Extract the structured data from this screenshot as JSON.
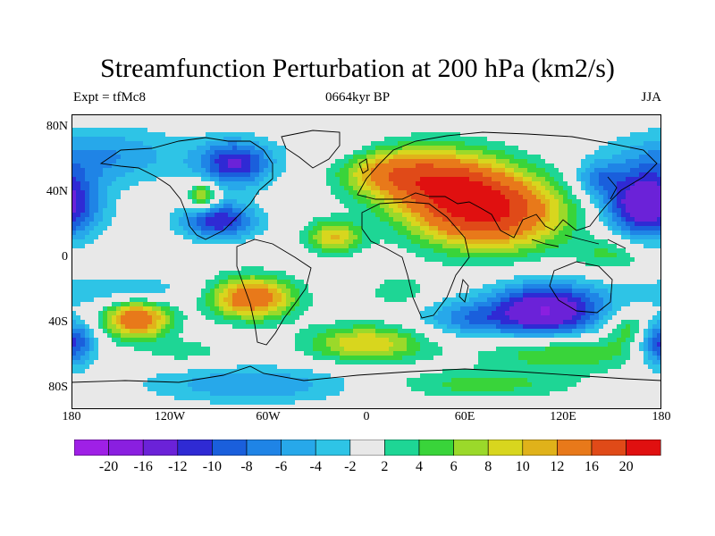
{
  "title": "Streamfunction Perturbation at 200 hPa (km2/s)",
  "left_label": "Expt = tfMc8",
  "center_label": "0664kyr BP",
  "right_label": "JJA",
  "lat_ticks": [
    "80N",
    "40N",
    "0",
    "40S",
    "80S"
  ],
  "lon_ticks": [
    "180",
    "120W",
    "60W",
    "0",
    "60E",
    "120E",
    "180"
  ],
  "colorbar": {
    "labels": [
      "-20",
      "-16",
      "-12",
      "-10",
      "-8",
      "-6",
      "-4",
      "-2",
      "2",
      "4",
      "6",
      "8",
      "10",
      "12",
      "16",
      "20"
    ],
    "colors": [
      "#9f20e6",
      "#8a1fe0",
      "#6b22d8",
      "#2f2ad4",
      "#1a5fdc",
      "#1f84e6",
      "#27a8ea",
      "#2ec4e6",
      "#e8e8e8",
      "#1ed695",
      "#39d43a",
      "#9bd92a",
      "#d8d61e",
      "#e0b21a",
      "#e8791a",
      "#e04a18",
      "#e01010"
    ]
  },
  "chart_data": {
    "type": "heatmap",
    "variable": "Streamfunction Perturbation at 200 hPa",
    "units": "km2/s",
    "season": "JJA",
    "x_range": [
      -180,
      180
    ],
    "y_range": [
      -90,
      90
    ],
    "levels": [
      -20,
      -16,
      -12,
      -10,
      -8,
      -6,
      -4,
      -2,
      2,
      4,
      6,
      8,
      10,
      12,
      16,
      20
    ],
    "features": [
      {
        "lon": 75,
        "lat": 30,
        "value": 20,
        "sx": 32,
        "sy": 16
      },
      {
        "lon": 45,
        "lat": 50,
        "value": 14,
        "sx": 28,
        "sy": 14
      },
      {
        "lon": 10,
        "lat": 55,
        "value": 8,
        "sx": 20,
        "sy": 10
      },
      {
        "lon": -100,
        "lat": 40,
        "value": 10,
        "sx": 6,
        "sy": 6
      },
      {
        "lon": -80,
        "lat": 60,
        "value": -12,
        "sx": 16,
        "sy": 10
      },
      {
        "lon": -90,
        "lat": 25,
        "value": -12,
        "sx": 16,
        "sy": 8
      },
      {
        "lon": -160,
        "lat": 65,
        "value": -6,
        "sx": 35,
        "sy": 12
      },
      {
        "lon": -20,
        "lat": 70,
        "value": -2,
        "sx": 20,
        "sy": 8
      },
      {
        "lon": 170,
        "lat": 35,
        "value": -16,
        "sx": 18,
        "sy": 15
      },
      {
        "lon": 140,
        "lat": 50,
        "value": -6,
        "sx": 10,
        "sy": 8
      },
      {
        "lon": 110,
        "lat": -30,
        "value": -16,
        "sx": 25,
        "sy": 12
      },
      {
        "lon": 60,
        "lat": -35,
        "value": -6,
        "sx": 20,
        "sy": 8
      },
      {
        "lon": -180,
        "lat": -50,
        "value": -12,
        "sx": 10,
        "sy": 10
      },
      {
        "lon": -150,
        "lat": -18,
        "value": -4,
        "sx": 35,
        "sy": 7
      },
      {
        "lon": -70,
        "lat": -75,
        "value": -6,
        "sx": 45,
        "sy": 8
      },
      {
        "lon": -140,
        "lat": -35,
        "value": 16,
        "sx": 14,
        "sy": 8
      },
      {
        "lon": -70,
        "lat": -22,
        "value": 16,
        "sx": 18,
        "sy": 9
      },
      {
        "lon": -20,
        "lat": 15,
        "value": 10,
        "sx": 12,
        "sy": 7
      },
      {
        "lon": 0,
        "lat": -50,
        "value": 10,
        "sx": 25,
        "sy": 8
      },
      {
        "lon": 120,
        "lat": -55,
        "value": 7,
        "sx": 35,
        "sy": 8
      },
      {
        "lon": 70,
        "lat": -75,
        "value": 5,
        "sx": 40,
        "sy": 6
      },
      {
        "lon": 20,
        "lat": -18,
        "value": 4,
        "sx": 12,
        "sy": 6
      },
      {
        "lon": 160,
        "lat": -40,
        "value": 6,
        "sx": 10,
        "sy": 7
      },
      {
        "lon": 150,
        "lat": 5,
        "value": 5,
        "sx": 15,
        "sy": 8
      },
      {
        "lon": -110,
        "lat": -55,
        "value": 3,
        "sx": 20,
        "sy": 6
      }
    ]
  }
}
